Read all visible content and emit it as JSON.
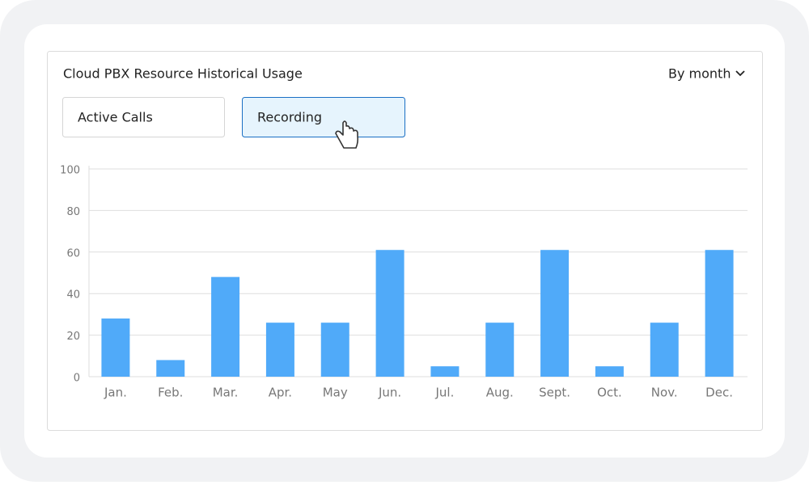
{
  "controls": {
    "period": "By month",
    "tabs": [
      "Active Calls",
      "Recording"
    ]
  },
  "chart_data": {
    "type": "bar",
    "title": "Cloud PBX Resource Historical Usage",
    "categories": [
      "Jan.",
      "Feb.",
      "Mar.",
      "Apr.",
      "May",
      "Jun.",
      "Jul.",
      "Aug.",
      "Sept.",
      "Oct.",
      "Nov.",
      "Dec."
    ],
    "values": [
      28,
      8,
      48,
      26,
      26,
      61,
      5,
      26,
      61,
      5,
      26,
      61
    ],
    "color": "#50aaf9",
    "ylim": [
      0,
      100
    ],
    "yticks": [
      0,
      20,
      40,
      60,
      80,
      100
    ],
    "grid": true
  }
}
